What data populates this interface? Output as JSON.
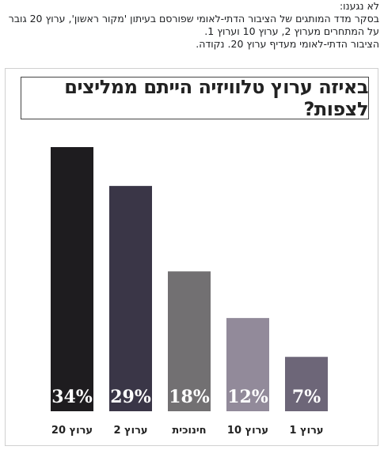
{
  "post": {
    "lines": [
      "לא נגענו:",
      "בסקר מדד המותגים של הציבור הדתי-לאומי שפורסם בעיתון 'מקור ראשון', ערוץ 20 גובר",
      "על המתחרים מערוץ 2, ערוץ 10 וערוץ 1.",
      "הציבור הדתי-לאומי מעדיף ערוץ 20. נקודה."
    ]
  },
  "chart_data": {
    "type": "bar",
    "title": "באיזה ערוץ טלוויזיה הייתם ממליצים לצפות?",
    "categories": [
      "ערוץ 20",
      "ערוץ 2",
      "חינוכית",
      "ערוץ 10",
      "ערוץ 1"
    ],
    "values": [
      34,
      29,
      18,
      12,
      7
    ],
    "value_labels": [
      "34%",
      "29%",
      "18%",
      "12%",
      "7%"
    ],
    "colors": [
      "#1e1c1f",
      "#3a3647",
      "#727072",
      "#928a9a",
      "#6d6678"
    ],
    "ylim": [
      0,
      34
    ],
    "grid": false
  }
}
